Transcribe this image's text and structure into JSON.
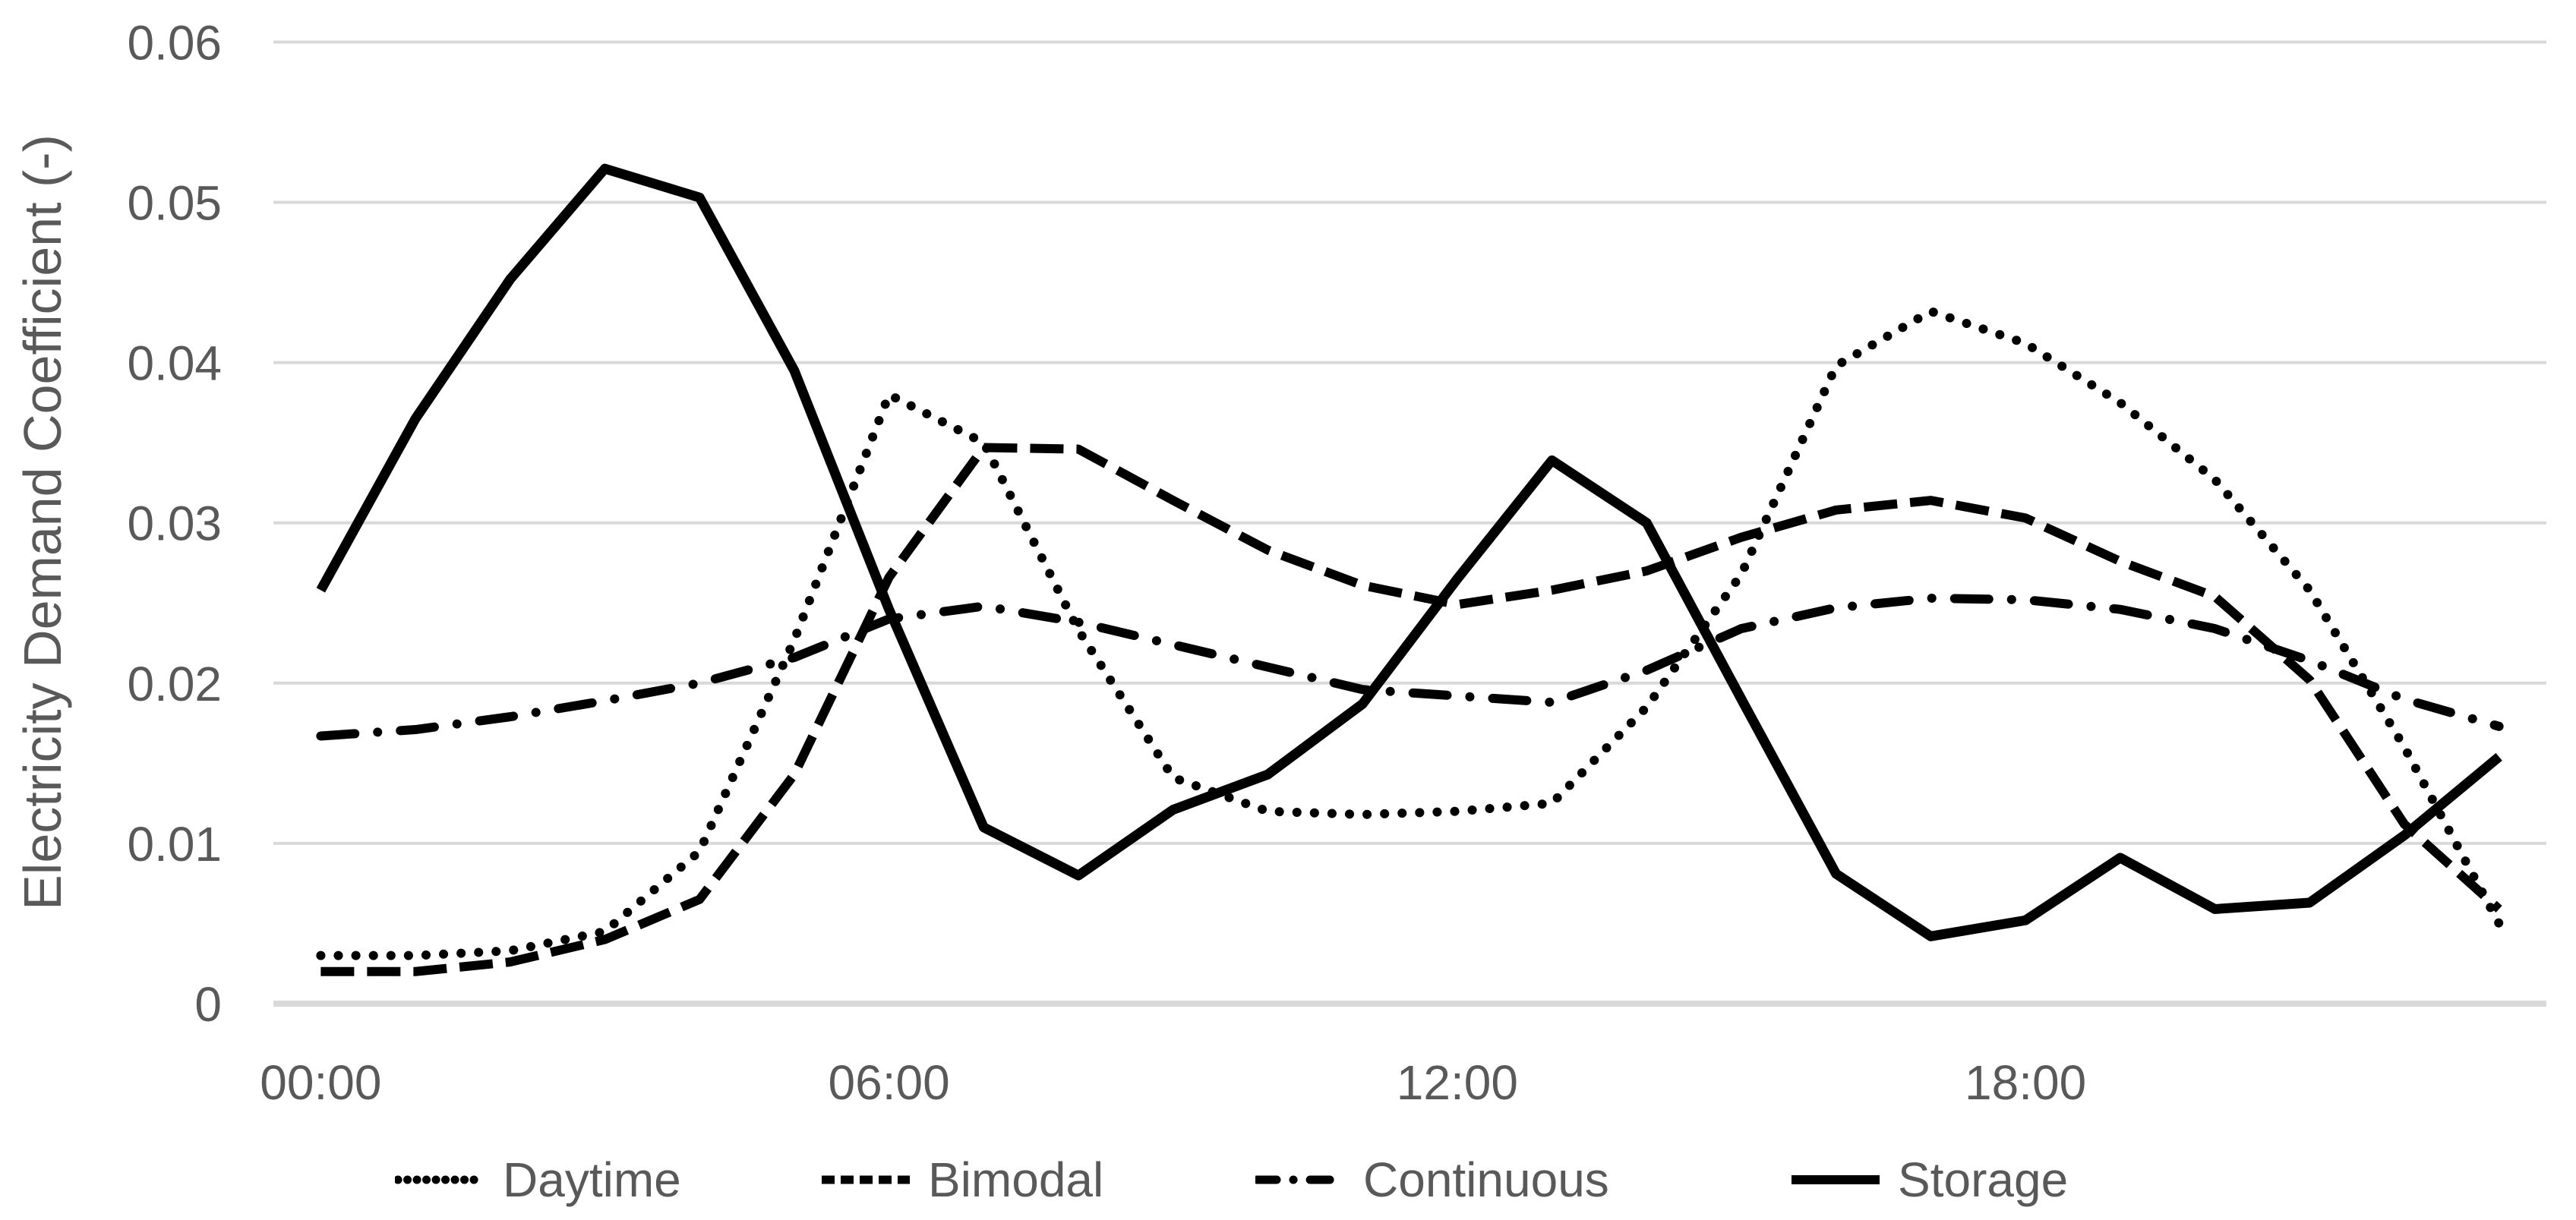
{
  "chart_data": {
    "type": "line",
    "title": "",
    "xlabel": "",
    "ylabel": "Electricity Demand Coefficient (-)",
    "ylim": [
      0,
      0.06
    ],
    "grid": "horizontal",
    "legend_position": "bottom",
    "categories": [
      "00:00",
      "01:00",
      "02:00",
      "03:00",
      "04:00",
      "05:00",
      "06:00",
      "07:00",
      "08:00",
      "09:00",
      "10:00",
      "11:00",
      "12:00",
      "13:00",
      "14:00",
      "15:00",
      "16:00",
      "17:00",
      "18:00",
      "19:00",
      "20:00",
      "21:00",
      "22:00",
      "23:00"
    ],
    "x_tick_labels": [
      "00:00",
      "06:00",
      "12:00",
      "18:00"
    ],
    "x_tick_hours": [
      0,
      6,
      12,
      18
    ],
    "y_ticks": [
      {
        "value": 0,
        "label": "0"
      },
      {
        "value": 0.01,
        "label": "0.01"
      },
      {
        "value": 0.02,
        "label": "0.02"
      },
      {
        "value": 0.03,
        "label": "0.03"
      },
      {
        "value": 0.04,
        "label": "0.04"
      },
      {
        "value": 0.05,
        "label": "0.05"
      },
      {
        "value": 0.06,
        "label": "0.06"
      }
    ],
    "series": [
      {
        "name": "Daytime",
        "line_style": "dotted",
        "color": "#000000",
        "values": [
          0.003,
          0.003,
          0.0033,
          0.0045,
          0.0095,
          0.0227,
          0.038,
          0.035,
          0.0233,
          0.0141,
          0.012,
          0.0118,
          0.012,
          0.0125,
          0.0185,
          0.0268,
          0.0398,
          0.0432,
          0.0412,
          0.0375,
          0.0327,
          0.0258,
          0.016,
          0.005
        ]
      },
      {
        "name": "Bimodal",
        "line_style": "dashed",
        "color": "#000000",
        "values": [
          0.002,
          0.002,
          0.0026,
          0.004,
          0.0065,
          0.0143,
          0.0266,
          0.0347,
          0.0346,
          0.0314,
          0.0283,
          0.0261,
          0.0249,
          0.0258,
          0.027,
          0.0291,
          0.0308,
          0.0314,
          0.0303,
          0.0276,
          0.0254,
          0.0202,
          0.0112,
          0.0059
        ]
      },
      {
        "name": "Continuous",
        "line_style": "dash-dot",
        "color": "#000000",
        "values": [
          0.0167,
          0.0171,
          0.0179,
          0.0189,
          0.02,
          0.0216,
          0.024,
          0.0248,
          0.0238,
          0.0224,
          0.021,
          0.0196,
          0.0192,
          0.0188,
          0.0208,
          0.0234,
          0.0247,
          0.0253,
          0.0252,
          0.0246,
          0.0234,
          0.0214,
          0.019,
          0.0173
        ]
      },
      {
        "name": "Storage",
        "line_style": "solid",
        "color": "#000000",
        "values": [
          0.0258,
          0.0365,
          0.0452,
          0.0521,
          0.0503,
          0.0395,
          0.0246,
          0.011,
          0.008,
          0.0121,
          0.0143,
          0.0187,
          0.0265,
          0.0339,
          0.03,
          0.019,
          0.0081,
          0.0042,
          0.0052,
          0.0091,
          0.0059,
          0.0063,
          0.0105,
          0.0154
        ]
      }
    ]
  },
  "colors": {
    "series_line": "#000000",
    "gridline": "#d9d9d9",
    "axis_line": "#d9d9d9",
    "tick_text": "#595959",
    "legend_text": "#595959",
    "background": "#ffffff"
  }
}
